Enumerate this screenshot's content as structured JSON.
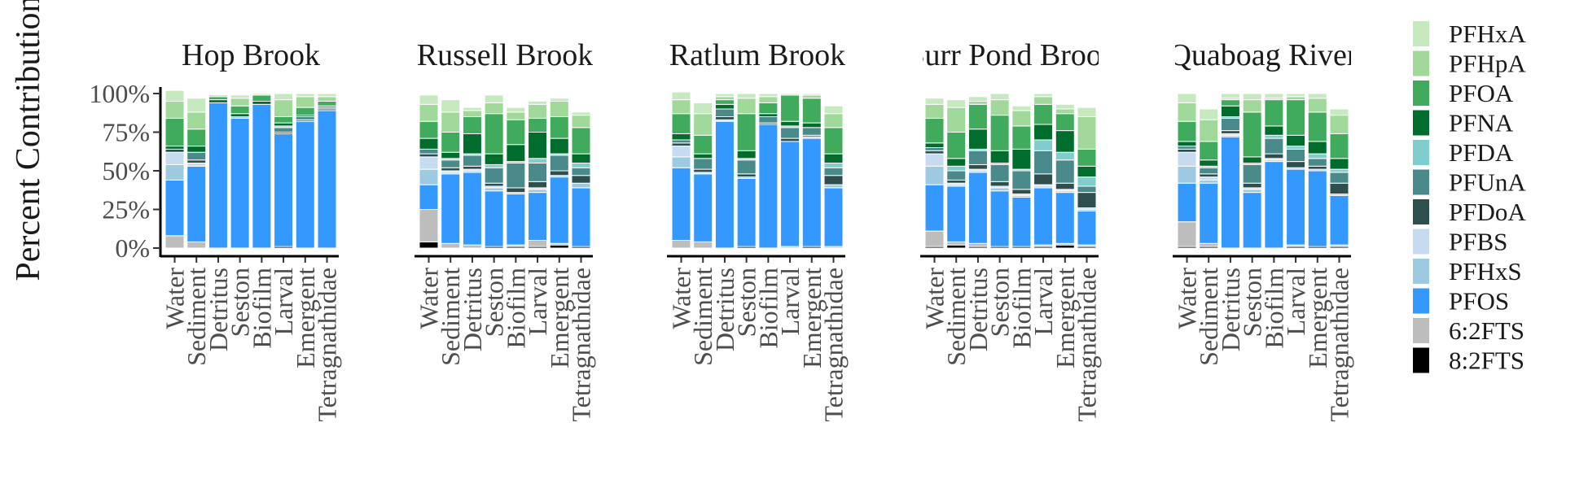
{
  "chart_data": {
    "type": "bar",
    "stacked": true,
    "ylabel": "Percent Contribution",
    "ylim": [
      0,
      100
    ],
    "yticks": [
      "0%",
      "25%",
      "50%",
      "75%",
      "100%"
    ],
    "categories": [
      "Water",
      "Sediment",
      "Detritus",
      "Seston",
      "Biofilm",
      "Larval",
      "Emergent",
      "Tetragnathidae"
    ],
    "legend_position": "right",
    "compounds": [
      {
        "name": "PFHxA",
        "color": "#c7e9c0"
      },
      {
        "name": "PFHpA",
        "color": "#a1d99b"
      },
      {
        "name": "PFOA",
        "color": "#41ab5d"
      },
      {
        "name": "PFNA",
        "color": "#006d2c"
      },
      {
        "name": "PFDA",
        "color": "#7fcdcd"
      },
      {
        "name": "PFUnA",
        "color": "#4a8a8a"
      },
      {
        "name": "PFDoA",
        "color": "#2f4f4f"
      },
      {
        "name": "PFBS",
        "color": "#c6dbef"
      },
      {
        "name": "PFHxS",
        "color": "#9ecae1"
      },
      {
        "name": "PFOS",
        "color": "#3399ff"
      },
      {
        "name": "6:2FTS",
        "color": "#bdbdbd"
      },
      {
        "name": "8:2FTS",
        "color": "#000000"
      }
    ],
    "facets": [
      {
        "title": "Hop Brook",
        "stacks": [
          [
            7,
            11,
            18,
            2,
            0,
            0,
            2,
            8,
            10,
            36,
            8,
            0
          ],
          [
            9,
            11,
            11,
            4,
            0,
            5,
            2,
            2,
            0,
            49,
            4,
            0
          ],
          [
            0,
            1,
            2,
            2,
            0,
            0,
            0,
            0,
            0,
            94,
            0,
            0
          ],
          [
            2,
            5,
            5,
            2,
            0,
            0,
            0,
            0,
            1,
            84,
            0,
            0
          ],
          [
            1,
            0,
            4,
            2,
            0,
            0,
            0,
            0,
            0,
            93,
            0,
            0
          ],
          [
            4,
            11,
            4,
            2,
            1,
            3,
            1,
            0,
            0,
            73,
            0,
            1
          ],
          [
            2,
            7,
            5,
            1,
            0,
            2,
            1,
            0,
            0,
            82,
            0,
            0
          ],
          [
            2,
            3,
            3,
            1,
            0,
            1,
            1,
            0,
            0,
            89,
            0,
            0
          ]
        ]
      },
      {
        "title": "Russell Brook",
        "stacks": [
          [
            6,
            11,
            11,
            7,
            0,
            3,
            2,
            8,
            10,
            16,
            21,
            4
          ],
          [
            8,
            13,
            13,
            4,
            1,
            5,
            2,
            1,
            1,
            45,
            3,
            0
          ],
          [
            2,
            4,
            11,
            13,
            1,
            7,
            2,
            1,
            1,
            47,
            2,
            0
          ],
          [
            5,
            7,
            26,
            7,
            2,
            10,
            2,
            1,
            2,
            36,
            0,
            1
          ],
          [
            3,
            5,
            16,
            11,
            1,
            16,
            3,
            0,
            1,
            33,
            1,
            1
          ],
          [
            2,
            9,
            9,
            17,
            3,
            12,
            4,
            1,
            2,
            31,
            4,
            1
          ],
          [
            2,
            10,
            14,
            10,
            1,
            10,
            3,
            0,
            1,
            43,
            1,
            2
          ],
          [
            2,
            8,
            17,
            6,
            3,
            5,
            5,
            0,
            3,
            38,
            0,
            1
          ]
        ]
      },
      {
        "title": "Ratlum Brook",
        "stacks": [
          [
            5,
            9,
            13,
            4,
            0,
            2,
            2,
            7,
            7,
            47,
            5,
            0
          ],
          [
            7,
            14,
            12,
            3,
            0,
            7,
            2,
            1,
            0,
            44,
            4,
            0
          ],
          [
            2,
            2,
            3,
            3,
            0,
            5,
            2,
            1,
            0,
            82,
            0,
            0
          ],
          [
            3,
            10,
            24,
            5,
            1,
            9,
            2,
            0,
            1,
            44,
            0,
            1
          ],
          [
            2,
            4,
            7,
            2,
            0,
            4,
            1,
            0,
            0,
            80,
            0,
            0
          ],
          [
            1,
            0,
            17,
            3,
            1,
            7,
            2,
            0,
            0,
            68,
            1,
            0
          ],
          [
            1,
            2,
            16,
            3,
            0,
            5,
            1,
            0,
            1,
            70,
            0,
            1
          ],
          [
            5,
            9,
            17,
            6,
            3,
            5,
            6,
            0,
            2,
            38,
            1,
            0
          ]
        ]
      },
      {
        "title": "Burr Pond Brook",
        "stacks": [
          [
            4,
            9,
            16,
            3,
            0,
            2,
            2,
            8,
            12,
            30,
            10,
            1
          ],
          [
            5,
            16,
            17,
            5,
            3,
            6,
            2,
            1,
            1,
            36,
            2,
            2
          ],
          [
            3,
            2,
            16,
            13,
            1,
            9,
            3,
            1,
            1,
            46,
            2,
            1
          ],
          [
            4,
            10,
            23,
            8,
            1,
            11,
            3,
            1,
            2,
            36,
            0,
            1
          ],
          [
            3,
            10,
            15,
            13,
            1,
            12,
            3,
            1,
            1,
            32,
            0,
            1
          ],
          [
            2,
            5,
            13,
            10,
            7,
            15,
            7,
            1,
            1,
            37,
            1,
            1
          ],
          [
            3,
            3,
            11,
            14,
            5,
            15,
            4,
            1,
            1,
            33,
            1,
            2
          ],
          [
            6,
            21,
            11,
            7,
            6,
            4,
            10,
            1,
            1,
            22,
            1,
            1
          ]
        ]
      },
      {
        "title": "Quaboag River",
        "stacks": [
          [
            6,
            12,
            13,
            3,
            0,
            2,
            2,
            9,
            11,
            25,
            16,
            1
          ],
          [
            7,
            14,
            12,
            4,
            1,
            4,
            2,
            2,
            2,
            39,
            2,
            1
          ],
          [
            3,
            1,
            4,
            7,
            1,
            8,
            2,
            1,
            1,
            72,
            0,
            0
          ],
          [
            4,
            8,
            29,
            4,
            1,
            12,
            3,
            1,
            2,
            36,
            0,
            0
          ],
          [
            3,
            1,
            17,
            6,
            2,
            10,
            3,
            1,
            1,
            56,
            0,
            0
          ],
          [
            2,
            2,
            23,
            7,
            2,
            8,
            4,
            0,
            1,
            49,
            1,
            1
          ],
          [
            3,
            9,
            19,
            8,
            3,
            5,
            2,
            0,
            1,
            49,
            0,
            1
          ],
          [
            4,
            12,
            16,
            7,
            2,
            7,
            7,
            0,
            1,
            32,
            1,
            1
          ]
        ]
      }
    ]
  }
}
